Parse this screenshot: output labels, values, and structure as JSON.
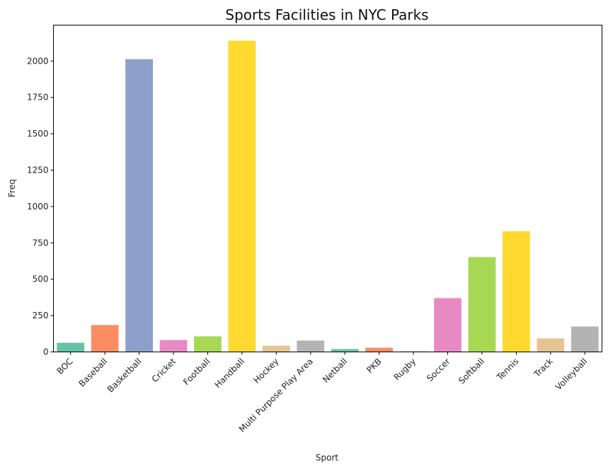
{
  "chart_data": {
    "type": "bar",
    "title": "Sports Facilities in NYC Parks",
    "xlabel": "Sport",
    "ylabel": "Freq",
    "categories": [
      "BOC",
      "Baseball",
      "Basketball",
      "Cricket",
      "Football",
      "Handball",
      "Hockey",
      "Multi Purpose Play Area",
      "Netball",
      "PKB",
      "Rugby",
      "Soccer",
      "Softball",
      "Tennis",
      "Track",
      "Volleyball"
    ],
    "values": [
      63,
      185,
      2013,
      82,
      107,
      2140,
      43,
      78,
      20,
      29,
      4,
      370,
      652,
      830,
      93,
      175
    ],
    "colors": [
      "#66c2a5",
      "#fc8d62",
      "#8da0cb",
      "#e78ac3",
      "#a6d854",
      "#ffd92f",
      "#e5c494",
      "#b3b3b3",
      "#66c2a5",
      "#fc8d62",
      "#8da0cb",
      "#e78ac3",
      "#a6d854",
      "#ffd92f",
      "#e5c494",
      "#b3b3b3"
    ],
    "ylim": [
      0,
      2247
    ],
    "yticks": [
      0,
      250,
      500,
      750,
      1000,
      1250,
      1500,
      1750,
      2000
    ],
    "grid": false,
    "legend": "none"
  }
}
